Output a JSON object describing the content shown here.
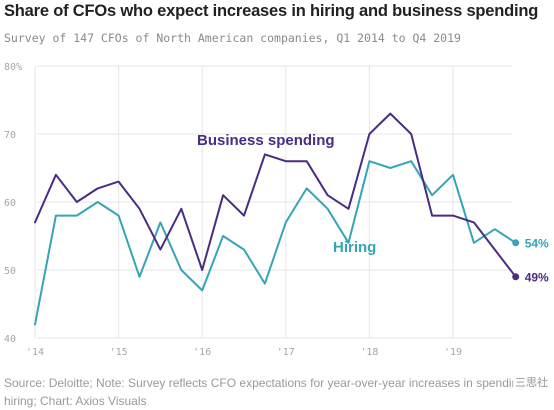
{
  "title": "Share of CFOs who expect increases in hiring and business spending",
  "subtitle": "Survey of 147 CFOs of North American companies, Q1 2014 to Q4 2019",
  "footer": "Source: Deloitte; Note: Survey reflects CFO expectations for year-over-year increases in spending and hiring; Chart: Axios Visuals",
  "watermark": "三思社",
  "colors": {
    "business_spending": "#4a2c82",
    "hiring": "#35a5b5",
    "grid": "#e6e6e6",
    "tick": "#a6a6a6"
  },
  "chart_data": {
    "type": "line",
    "title": "Share of CFOs who expect increases in hiring and business spending",
    "subtitle": "Survey of 147 CFOs of North American companies, Q1 2014 to Q4 2019",
    "x": [
      "2014 Q1",
      "2014 Q2",
      "2014 Q3",
      "2014 Q4",
      "2015 Q1",
      "2015 Q2",
      "2015 Q3",
      "2015 Q4",
      "2016 Q1",
      "2016 Q2",
      "2016 Q3",
      "2016 Q4",
      "2017 Q1",
      "2017 Q2",
      "2017 Q3",
      "2017 Q4",
      "2018 Q1",
      "2018 Q2",
      "2018 Q3",
      "2018 Q4",
      "2019 Q1",
      "2019 Q2",
      "2019 Q3",
      "2019 Q4"
    ],
    "x_tick_labels": [
      "'14",
      "'15",
      "'16",
      "'17",
      "'18",
      "'19"
    ],
    "y_tick_labels": [
      "40",
      "50",
      "60",
      "70",
      "80%"
    ],
    "ylim": [
      40,
      80
    ],
    "grid": true,
    "series": [
      {
        "name": "Business spending",
        "color": "#4a2c82",
        "values": [
          57,
          64,
          60,
          62,
          63,
          59,
          53,
          59,
          50,
          61,
          58,
          67,
          66,
          66,
          61,
          59,
          70,
          73,
          70,
          58,
          58,
          57,
          53,
          49
        ],
        "end_label": "49%"
      },
      {
        "name": "Hiring",
        "color": "#35a5b5",
        "values": [
          42,
          58,
          58,
          60,
          58,
          49,
          57,
          50,
          47,
          55,
          53,
          48,
          57,
          62,
          59,
          54,
          66,
          65,
          66,
          61,
          64,
          54,
          56,
          54
        ],
        "end_label": "54%"
      }
    ]
  }
}
